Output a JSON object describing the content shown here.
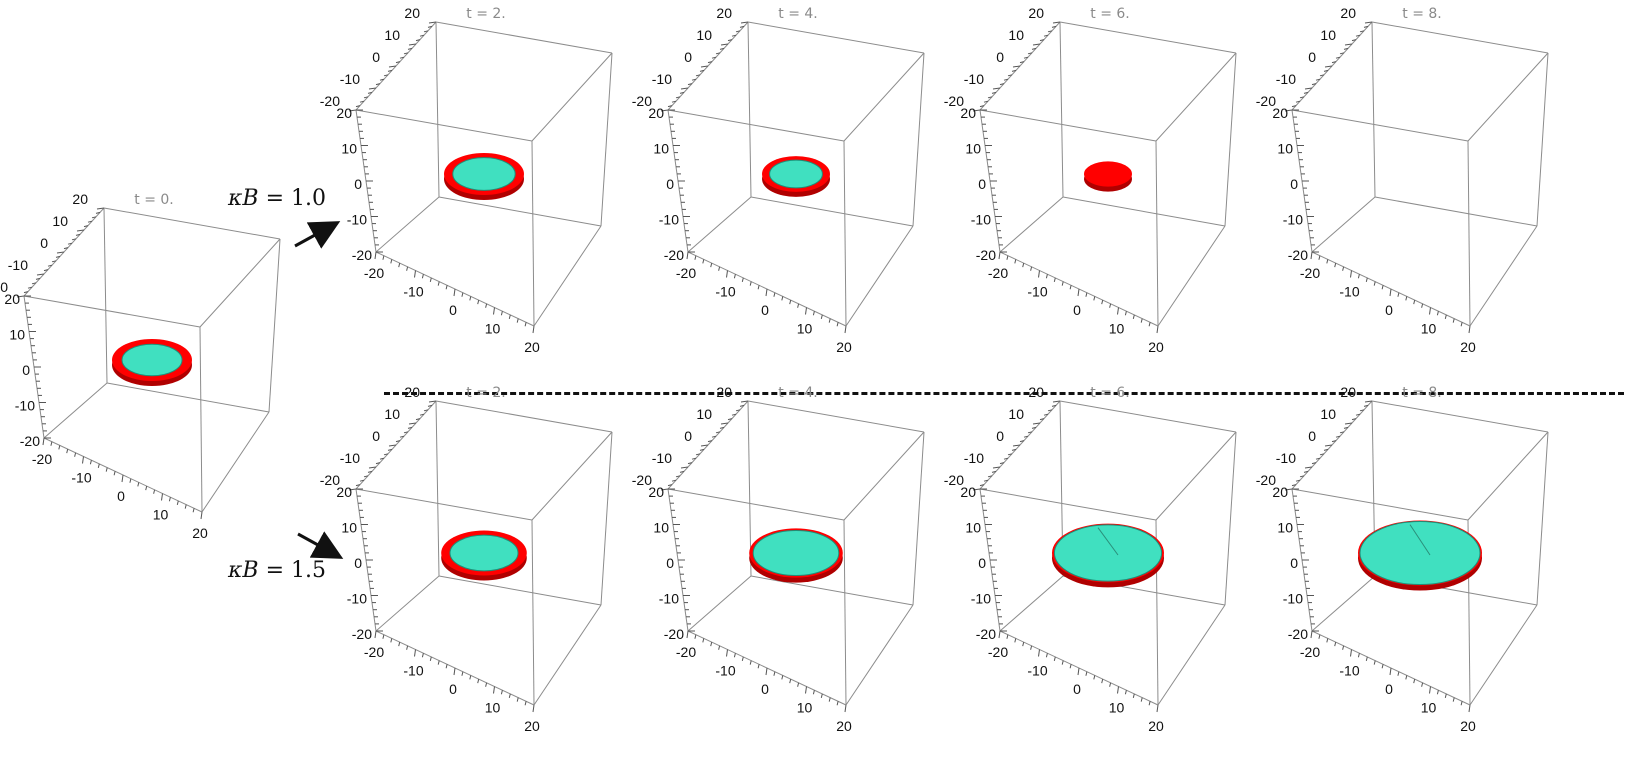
{
  "colors": {
    "ring_outer": "#ff0000",
    "ring_inner": "#40e0c0",
    "box_edge": "#8c8c8c",
    "title": "#8a8a8a"
  },
  "tick_values": [
    "-20",
    "-10",
    "0",
    "10",
    "20"
  ],
  "initial_state": {
    "title": "t = 0.",
    "inner_radius": 0.75,
    "outer_radius": 1.0
  },
  "rows": [
    {
      "param_label": {
        "lhs": "κB",
        "rhs": " = 1.0"
      },
      "panels": [
        {
          "title": "t = 2.",
          "outer_radius": 1.0,
          "inner_radius": 0.78
        },
        {
          "title": "t = 4.",
          "outer_radius": 0.85,
          "inner_radius": 0.66
        },
        {
          "title": "t = 6.",
          "outer_radius": 0.6,
          "inner_radius": 0
        },
        {
          "title": "t = 8.",
          "outer_radius": 0,
          "inner_radius": 0
        }
      ]
    },
    {
      "param_label": {
        "lhs": "κB",
        "rhs": " = 1.5"
      },
      "panels": [
        {
          "title": "t = 2.",
          "outer_radius": 1.07,
          "inner_radius": 0.85
        },
        {
          "title": "t = 4.",
          "outer_radius": 1.17,
          "inner_radius": 1.07
        },
        {
          "title": "t = 6.",
          "outer_radius": 1.4,
          "inner_radius": 1.34
        },
        {
          "title": "t = 8.",
          "outer_radius": 1.55,
          "inner_radius": 1.5
        }
      ]
    }
  ]
}
